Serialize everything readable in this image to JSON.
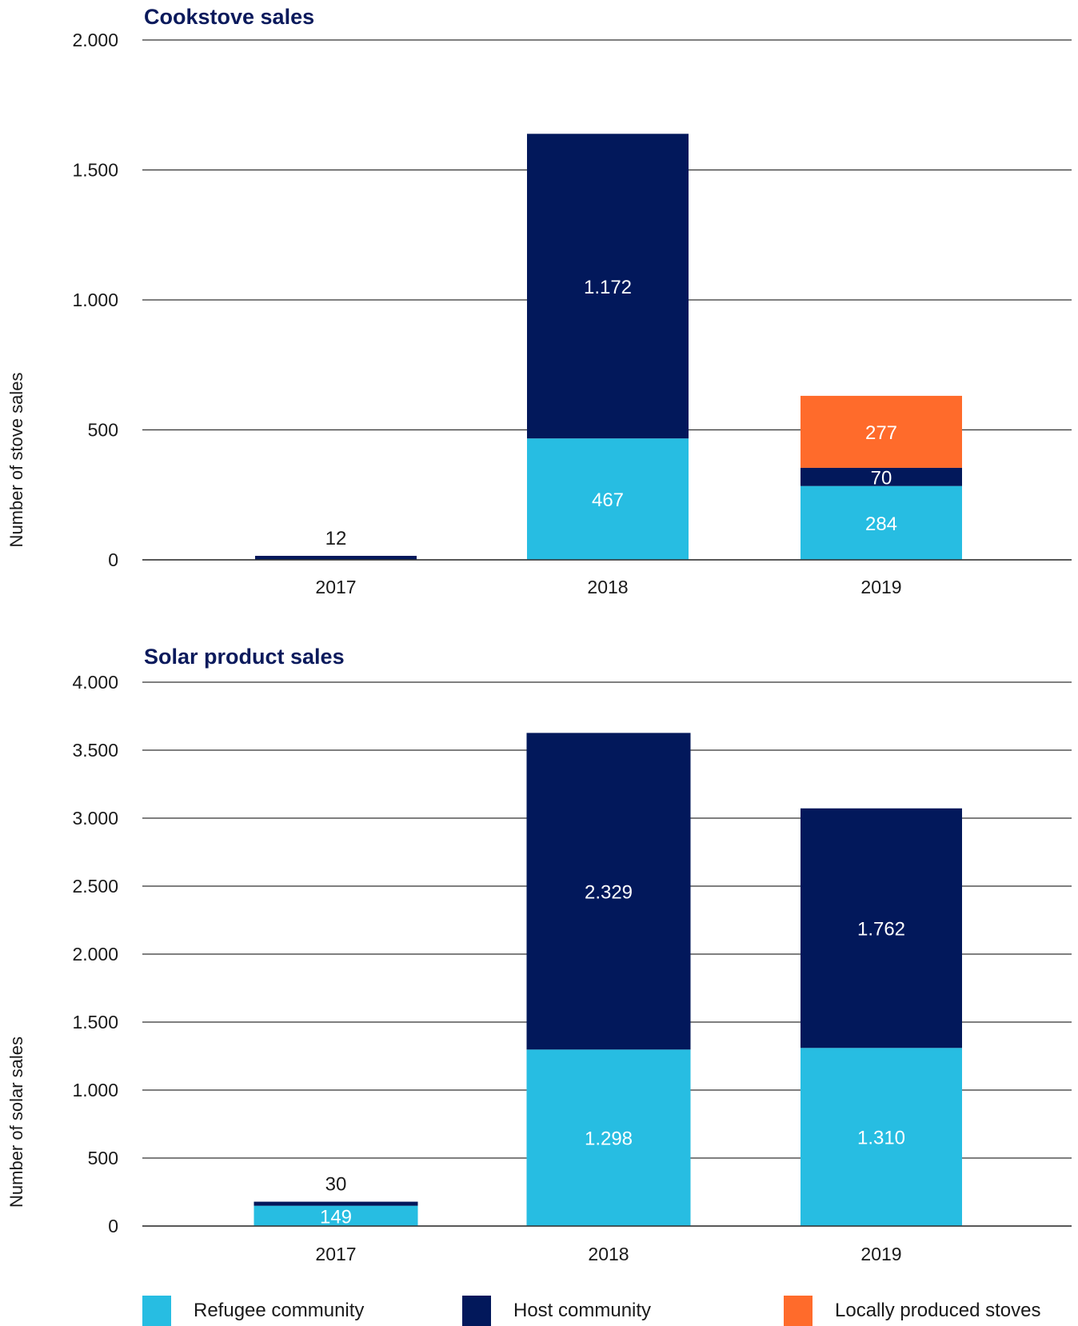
{
  "colors": {
    "refugee": "#27bde2",
    "host": "#02185b",
    "local": "#ff6b2b",
    "title": "#0b1a5c",
    "grid": "#333333"
  },
  "legend": [
    {
      "label": "Refugee community",
      "color": "#27bde2"
    },
    {
      "label": "Host community",
      "color": "#02185b"
    },
    {
      "label": "Locally produced stoves",
      "color": "#ff6b2b"
    }
  ],
  "chart_data": [
    {
      "type": "bar",
      "stacked": true,
      "title": "Cookstove sales",
      "ylabel": "Number of stove sales",
      "xlabel": "",
      "categories": [
        "2017",
        "2018",
        "2019"
      ],
      "ylim": [
        0,
        2000
      ],
      "yticks": [
        0,
        500,
        1000,
        1500,
        2000
      ],
      "ytick_labels": [
        "0",
        "500",
        "1.000",
        "1.500",
        "2.000"
      ],
      "series": [
        {
          "name": "Refugee community",
          "color": "#27bde2",
          "values": [
            0,
            467,
            284
          ],
          "labels": [
            "",
            "467",
            "284"
          ]
        },
        {
          "name": "Host community",
          "color": "#02185b",
          "values": [
            12,
            1172,
            70
          ],
          "labels": [
            "12",
            "1.172",
            "70"
          ]
        },
        {
          "name": "Locally produced stoves",
          "color": "#ff6b2b",
          "values": [
            0,
            0,
            277
          ],
          "labels": [
            "",
            "",
            "277"
          ]
        }
      ],
      "grid": true
    },
    {
      "type": "bar",
      "stacked": true,
      "title": "Solar product sales",
      "ylabel": "Number of solar sales",
      "xlabel": "",
      "categories": [
        "2017",
        "2018",
        "2019"
      ],
      "ylim": [
        0,
        4000
      ],
      "yticks": [
        0,
        500,
        1000,
        1500,
        2000,
        2500,
        3000,
        3500,
        4000
      ],
      "ytick_labels": [
        "0",
        "500",
        "1.000",
        "1.500",
        "2.000",
        "2.500",
        "3.000",
        "3.500",
        "4.000"
      ],
      "series": [
        {
          "name": "Refugee community",
          "color": "#27bde2",
          "values": [
            149,
            1298,
            1310
          ],
          "labels": [
            "149",
            "1.298",
            "1.310"
          ]
        },
        {
          "name": "Host community",
          "color": "#02185b",
          "values": [
            30,
            2329,
            1762
          ],
          "labels": [
            "30",
            "2.329",
            "1.762"
          ]
        }
      ],
      "grid": true
    }
  ]
}
